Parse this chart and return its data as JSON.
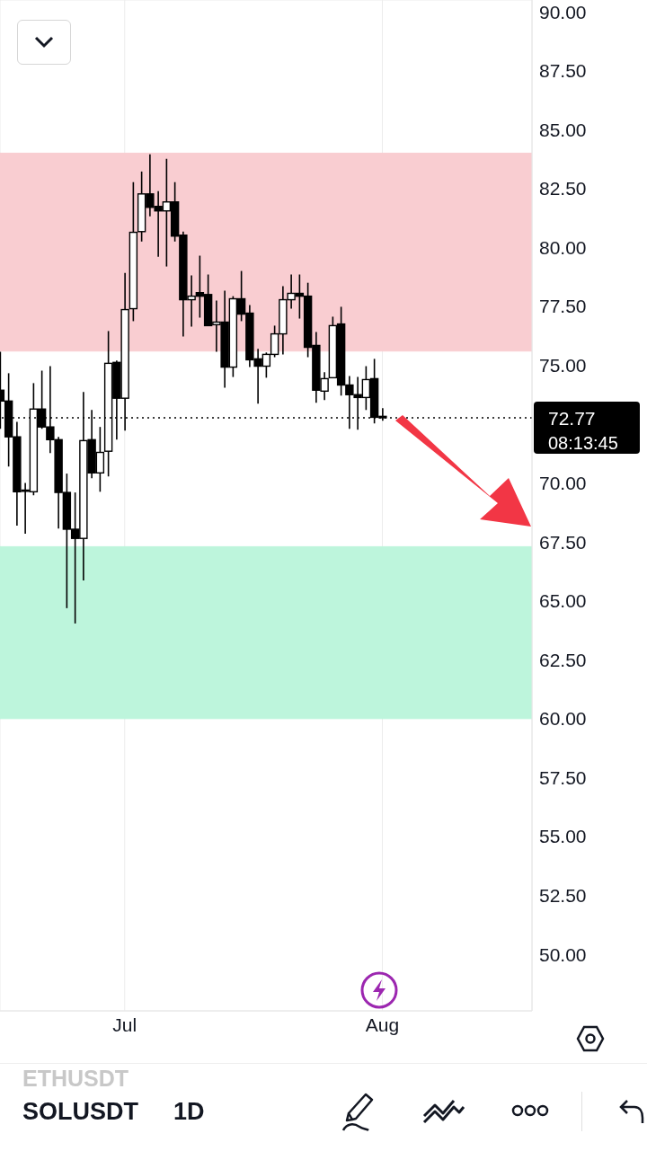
{
  "chart_data": {
    "type": "candlestick",
    "color": "#000000",
    "x": [
      "--06-16",
      "--06-17",
      "--06-18",
      "--06-19",
      "--06-20",
      "--06-21",
      "--06-22",
      "--06-23",
      "--06-24",
      "--06-25",
      "--06-26",
      "--06-27",
      "--06-28",
      "--06-29",
      "--06-30",
      "--07-01",
      "--07-02",
      "--07-03",
      "--07-04",
      "--07-05",
      "--07-06",
      "--07-07",
      "--07-08",
      "--07-09",
      "--07-10",
      "--07-11",
      "--07-12",
      "--07-13",
      "--07-14",
      "--07-15",
      "--07-16",
      "--07-17",
      "--07-18",
      "--07-19",
      "--07-20",
      "--07-21",
      "--07-22",
      "--07-23",
      "--07-24",
      "--07-25",
      "--07-26",
      "--07-27",
      "--07-28",
      "--07-29",
      "--07-30",
      "--07-31",
      "--08-01"
    ],
    "ohlc": [
      [
        73.94,
        75.57,
        72.3,
        73.48
      ],
      [
        73.48,
        74.66,
        70.7,
        71.96
      ],
      [
        71.96,
        72.6,
        68.19,
        69.63
      ],
      [
        69.65,
        70.0,
        67.85,
        69.7
      ],
      [
        69.63,
        74.24,
        69.48,
        73.14
      ],
      [
        73.14,
        74.77,
        72.3,
        72.38
      ],
      [
        72.38,
        74.96,
        71.27,
        71.84
      ],
      [
        71.84,
        71.96,
        68.07,
        69.6
      ],
      [
        69.6,
        70.4,
        64.69,
        68.04
      ],
      [
        68.04,
        69.6,
        64.04,
        67.65
      ],
      [
        67.65,
        73.86,
        65.87,
        71.8
      ],
      [
        71.84,
        73.1,
        70.2,
        70.43
      ],
      [
        70.43,
        72.38,
        69.63,
        71.3
      ],
      [
        71.35,
        76.45,
        70.28,
        75.08
      ],
      [
        75.12,
        75.2,
        71.84,
        73.6
      ],
      [
        73.6,
        78.92,
        72.22,
        77.36
      ],
      [
        77.4,
        82.77,
        76.87,
        80.64
      ],
      [
        80.67,
        83.22,
        80.25,
        82.27
      ],
      [
        82.27,
        83.95,
        81.32,
        81.7
      ],
      [
        81.74,
        82.39,
        79.6,
        81.55
      ],
      [
        81.55,
        83.76,
        79.19,
        81.93
      ],
      [
        81.93,
        82.77,
        80.25,
        80.48
      ],
      [
        80.52,
        80.67,
        76.22,
        77.78
      ],
      [
        77.78,
        78.81,
        76.64,
        77.93
      ],
      [
        78.08,
        79.65,
        77.02,
        77.93
      ],
      [
        78.0,
        78.85,
        76.68,
        76.68
      ],
      [
        76.72,
        77.74,
        75.57,
        76.83
      ],
      [
        76.83,
        78.16,
        74.05,
        74.92
      ],
      [
        74.92,
        77.93,
        74.5,
        77.82
      ],
      [
        77.82,
        79.0,
        76.87,
        77.17
      ],
      [
        77.21,
        77.55,
        74.92,
        75.23
      ],
      [
        75.27,
        75.69,
        73.37,
        74.96
      ],
      [
        74.96,
        75.54,
        74.47,
        75.46
      ],
      [
        75.46,
        76.68,
        75.34,
        76.33
      ],
      [
        76.33,
        78.35,
        75.46,
        77.78
      ],
      [
        77.78,
        78.85,
        77.4,
        78.05
      ],
      [
        78.05,
        78.85,
        76.98,
        77.93
      ],
      [
        77.93,
        78.5,
        75.34,
        75.76
      ],
      [
        75.84,
        76.41,
        73.41,
        73.94
      ],
      [
        73.9,
        74.7,
        73.52,
        74.43
      ],
      [
        74.47,
        77.06,
        74.47,
        76.68
      ],
      [
        76.75,
        77.48,
        73.71,
        74.16
      ],
      [
        74.16,
        74.54,
        72.3,
        73.75
      ],
      [
        73.75,
        74.5,
        72.26,
        73.63
      ],
      [
        73.63,
        74.96,
        73.1,
        74.39
      ],
      [
        74.43,
        75.27,
        72.53,
        72.79
      ],
      [
        72.83,
        73.18,
        72.64,
        72.77
      ]
    ],
    "xlim": [
      "--06-16",
      "--08-19"
    ],
    "xticks": [
      {
        "value": "--07-01",
        "label": "Jul"
      },
      {
        "value": "--08-01",
        "label": "Aug"
      }
    ],
    "ylim": [
      47.6,
      90.5
    ],
    "yticks": [
      {
        "value": 50,
        "label": "50.00"
      },
      {
        "value": 52.5,
        "label": "52.50"
      },
      {
        "value": 55,
        "label": "55.00"
      },
      {
        "value": 57.5,
        "label": "57.50"
      },
      {
        "value": 60,
        "label": "60.00"
      },
      {
        "value": 62.5,
        "label": "62.50"
      },
      {
        "value": 65,
        "label": "65.00"
      },
      {
        "value": 67.5,
        "label": "67.50"
      },
      {
        "value": 70,
        "label": "70.00"
      },
      {
        "value": 75,
        "label": "75.00"
      },
      {
        "value": 77.5,
        "label": "77.50"
      },
      {
        "value": 80,
        "label": "80.00"
      },
      {
        "value": 82.5,
        "label": "82.50"
      },
      {
        "value": 85,
        "label": "85.00"
      },
      {
        "value": 87.5,
        "label": "87.50"
      },
      {
        "value": 90,
        "label": "90.00"
      }
    ],
    "bands": [
      {
        "axis": "y",
        "from": 75.6,
        "to": 84.0,
        "color": "#f9cdd1"
      },
      {
        "axis": "y",
        "from": 60.0,
        "to": 67.3,
        "color": "#bdf5dc"
      }
    ],
    "ref_lines": [
      {
        "axis": "y",
        "value": 72.77,
        "label": "72.77",
        "line_style": "dotted",
        "color": "#000000"
      }
    ],
    "annotations": [
      "08:13:45",
      "ETHUSDT",
      "SOLUSDT",
      "1D"
    ],
    "grid": true
  }
}
